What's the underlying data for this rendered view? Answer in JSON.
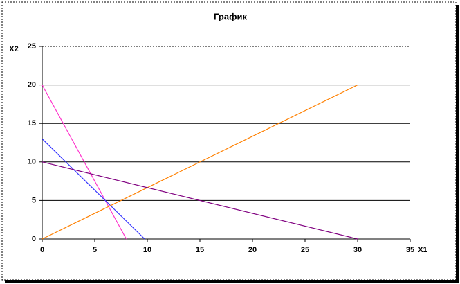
{
  "chart_data": {
    "type": "line",
    "title": "График",
    "x_label": "X1",
    "y_label": "X2",
    "series": [
      {
        "color": "#ff33cc",
        "x": [
          0,
          8
        ],
        "values": [
          20,
          0
        ]
      },
      {
        "color": "#3333ff",
        "x": [
          0,
          9.75
        ],
        "values": [
          13,
          0
        ]
      },
      {
        "color": "#ff8000",
        "x": [
          0,
          30
        ],
        "values": [
          0,
          20
        ]
      },
      {
        "color": "#800080",
        "x": [
          0,
          30
        ],
        "values": [
          10,
          0
        ]
      }
    ],
    "xlim": [
      0,
      35
    ],
    "xticks": [
      0,
      5,
      10,
      15,
      20,
      25,
      30,
      35
    ],
    "ylim": [
      0,
      25
    ],
    "yticks": [
      0,
      5,
      10,
      15,
      20,
      25
    ],
    "grid": true
  }
}
